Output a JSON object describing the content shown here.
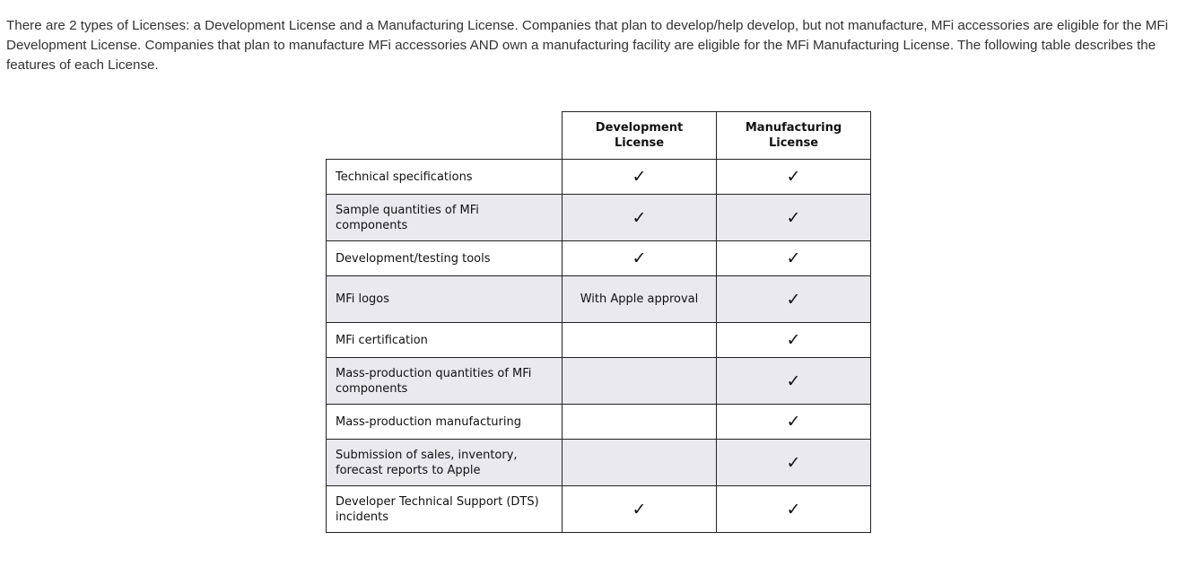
{
  "intro": {
    "paragraph": "There are 2 types of Licenses: a Development License and a Manufacturing License. Companies that plan to develop/help develop, but not manufacture, MFi accessories are eligible for the MFi Development License. Companies that plan to manufacture MFi accessories AND own a manufacturing facility are eligible for the MFi Manufacturing License. The following table describes the features of each License."
  },
  "table": {
    "columns": [
      "",
      "Development License",
      "Manufacturing License"
    ],
    "rows": [
      {
        "feature": "Technical specifications",
        "development": "✓",
        "manufacturing": "✓"
      },
      {
        "feature": "Sample quantities of MFi components",
        "development": "✓",
        "manufacturing": "✓"
      },
      {
        "feature": "Development/testing tools",
        "development": "✓",
        "manufacturing": "✓"
      },
      {
        "feature": "MFi logos",
        "development": "With Apple approval",
        "manufacturing": "✓"
      },
      {
        "feature": "MFi certification",
        "development": "",
        "manufacturing": "✓"
      },
      {
        "feature": "Mass-production quantities of MFi components",
        "development": "",
        "manufacturing": "✓"
      },
      {
        "feature": "Mass-production manufacturing",
        "development": "",
        "manufacturing": "✓"
      },
      {
        "feature": "Submission of sales, inventory, forecast reports to Apple",
        "development": "",
        "manufacturing": "✓"
      },
      {
        "feature": "Developer Technical Support (DTS) incidents",
        "development": "✓",
        "manufacturing": "✓"
      }
    ]
  },
  "colors": {
    "text": "#333333",
    "row_shade": "#e9e9ee",
    "border": "#222222"
  }
}
